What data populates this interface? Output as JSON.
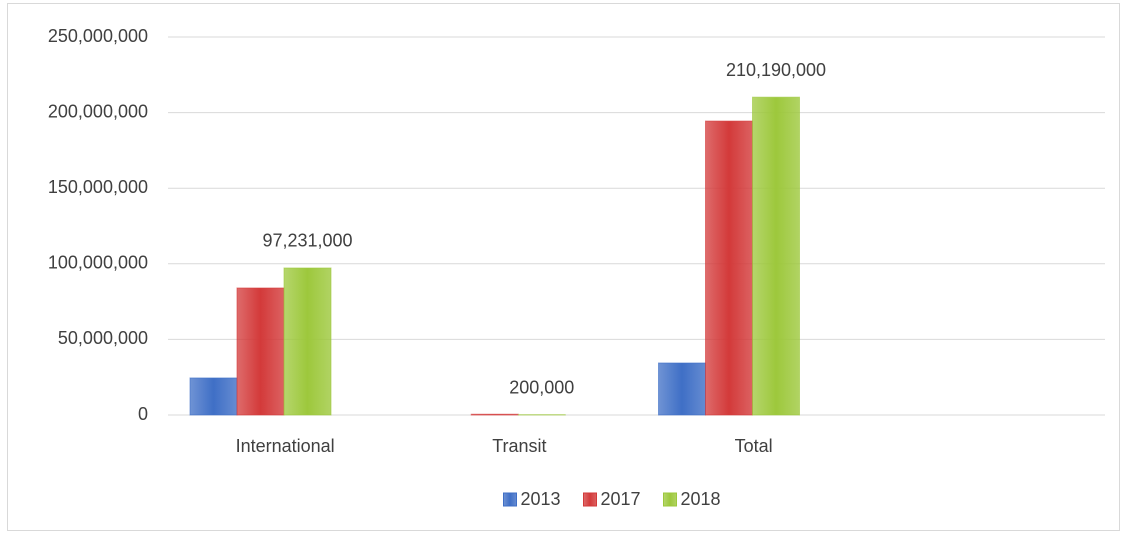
{
  "chart_data": {
    "type": "bar",
    "categories": [
      "International",
      "Transit",
      "Total",
      null
    ],
    "series": [
      {
        "name": "2013",
        "color": "#3f6fc6",
        "values": [
          24500000,
          0,
          34400000,
          null
        ]
      },
      {
        "name": "2017",
        "color": "#d33a3a",
        "values": [
          84000000,
          500000,
          194400000,
          null
        ]
      },
      {
        "name": "2018",
        "color": "#9dc83c",
        "values": [
          97231000,
          200000,
          210190000,
          null
        ],
        "value_labels": [
          "97,231,000",
          "200,000",
          "210,190,000",
          null
        ]
      }
    ],
    "ylim": [
      0,
      250000000
    ],
    "yticks": [
      0,
      {
        "value": 50000000,
        "label": "50,000,000"
      },
      {
        "value": 100000000,
        "label": "100,000,000"
      },
      {
        "value": 150000000,
        "label": "150,000,000"
      },
      {
        "value": 200000000,
        "label": "200,000,000"
      },
      {
        "value": 250000000,
        "label": "250,000,000"
      }
    ],
    "grid": true,
    "legend": "bottom"
  }
}
